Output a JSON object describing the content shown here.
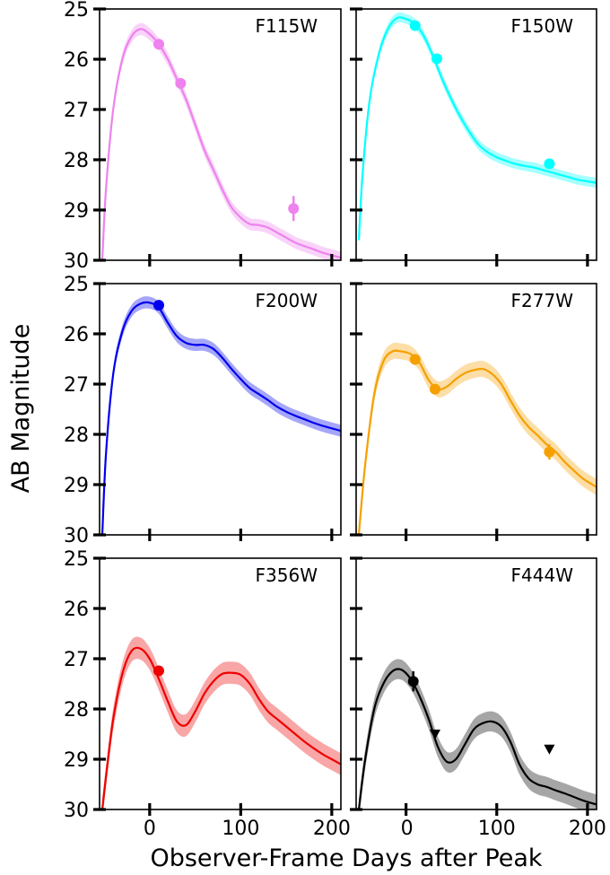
{
  "chart_data": {
    "type": "line",
    "ylabel": "AB Magnitude",
    "xlabel": "Observer-Frame Days after Peak",
    "xlim": [
      -55,
      210
    ],
    "ylim": [
      30,
      25
    ],
    "y_inverted": true,
    "x_ticks": [
      0,
      100,
      200
    ],
    "x_tick_labels": [
      "0",
      "100",
      "200"
    ],
    "y_ticks": [
      25,
      26,
      27,
      28,
      29,
      30
    ],
    "y_tick_labels": [
      "25",
      "26",
      "27",
      "28",
      "29",
      "30"
    ],
    "grid": false,
    "layout": "3 rows x 2 columns, shared axes",
    "panels": [
      {
        "name": "F115W",
        "color": "#ee82ee",
        "model": [
          [
            -52,
            30.0
          ],
          [
            -48,
            28.6
          ],
          [
            -40,
            27.0
          ],
          [
            -30,
            26.0
          ],
          [
            -20,
            25.55
          ],
          [
            -10,
            25.4
          ],
          [
            0,
            25.5
          ],
          [
            10,
            25.7
          ],
          [
            20,
            26.0
          ],
          [
            30,
            26.4
          ],
          [
            40,
            26.8
          ],
          [
            50,
            27.3
          ],
          [
            60,
            27.8
          ],
          [
            70,
            28.2
          ],
          [
            80,
            28.6
          ],
          [
            90,
            28.95
          ],
          [
            100,
            29.15
          ],
          [
            110,
            29.28
          ],
          [
            120,
            29.3
          ],
          [
            130,
            29.35
          ],
          [
            140,
            29.45
          ],
          [
            150,
            29.55
          ],
          [
            160,
            29.65
          ],
          [
            170,
            29.72
          ],
          [
            180,
            29.78
          ],
          [
            190,
            29.85
          ],
          [
            200,
            29.9
          ],
          [
            210,
            29.95
          ]
        ],
        "band_halfwidth": 0.12,
        "points": [
          {
            "x": 10,
            "y": 25.7,
            "yerr": 0.06
          },
          {
            "x": 34,
            "y": 26.48,
            "yerr": 0.08
          },
          {
            "x": 158,
            "y": 28.97,
            "yerr": 0.25
          }
        ],
        "upper_limits": []
      },
      {
        "name": "F150W",
        "color": "#00ffff",
        "model": [
          [
            -52,
            29.6
          ],
          [
            -48,
            28.3
          ],
          [
            -40,
            26.8
          ],
          [
            -30,
            25.9
          ],
          [
            -20,
            25.4
          ],
          [
            -10,
            25.18
          ],
          [
            0,
            25.2
          ],
          [
            10,
            25.3
          ],
          [
            20,
            25.55
          ],
          [
            30,
            25.95
          ],
          [
            40,
            26.4
          ],
          [
            50,
            26.8
          ],
          [
            60,
            27.15
          ],
          [
            70,
            27.45
          ],
          [
            80,
            27.7
          ],
          [
            90,
            27.85
          ],
          [
            100,
            27.95
          ],
          [
            110,
            28.02
          ],
          [
            120,
            28.08
          ],
          [
            130,
            28.12
          ],
          [
            140,
            28.15
          ],
          [
            150,
            28.2
          ],
          [
            160,
            28.25
          ],
          [
            170,
            28.3
          ],
          [
            180,
            28.35
          ],
          [
            190,
            28.4
          ],
          [
            200,
            28.43
          ],
          [
            210,
            28.46
          ]
        ],
        "band_halfwidth": 0.1,
        "points": [
          {
            "x": 10,
            "y": 25.33,
            "yerr": 0.05
          },
          {
            "x": 34,
            "y": 25.99,
            "yerr": 0.06
          },
          {
            "x": 158,
            "y": 28.08,
            "yerr": 0.08
          }
        ],
        "upper_limits": []
      },
      {
        "name": "F200W",
        "color": "#0000ee",
        "model": [
          [
            -52,
            30.0
          ],
          [
            -48,
            28.4
          ],
          [
            -40,
            26.8
          ],
          [
            -30,
            25.95
          ],
          [
            -20,
            25.55
          ],
          [
            -10,
            25.4
          ],
          [
            0,
            25.38
          ],
          [
            10,
            25.48
          ],
          [
            20,
            25.78
          ],
          [
            30,
            26.05
          ],
          [
            40,
            26.18
          ],
          [
            50,
            26.22
          ],
          [
            60,
            26.22
          ],
          [
            70,
            26.3
          ],
          [
            80,
            26.48
          ],
          [
            90,
            26.7
          ],
          [
            100,
            26.9
          ],
          [
            110,
            27.08
          ],
          [
            120,
            27.2
          ],
          [
            130,
            27.32
          ],
          [
            140,
            27.45
          ],
          [
            150,
            27.55
          ],
          [
            160,
            27.63
          ],
          [
            170,
            27.7
          ],
          [
            180,
            27.77
          ],
          [
            190,
            27.83
          ],
          [
            200,
            27.88
          ],
          [
            210,
            27.93
          ]
        ],
        "band_halfwidth": 0.12,
        "points": [
          {
            "x": 10,
            "y": 25.43,
            "yerr": 0.05
          }
        ],
        "upper_limits": []
      },
      {
        "name": "F277W",
        "color": "#f5a000",
        "model": [
          [
            -52,
            30.0
          ],
          [
            -45,
            28.6
          ],
          [
            -35,
            27.2
          ],
          [
            -25,
            26.55
          ],
          [
            -15,
            26.35
          ],
          [
            -5,
            26.35
          ],
          [
            5,
            26.4
          ],
          [
            15,
            26.58
          ],
          [
            25,
            26.92
          ],
          [
            35,
            27.1
          ],
          [
            45,
            27.05
          ],
          [
            55,
            26.9
          ],
          [
            65,
            26.78
          ],
          [
            75,
            26.72
          ],
          [
            85,
            26.7
          ],
          [
            95,
            26.8
          ],
          [
            105,
            27.0
          ],
          [
            115,
            27.32
          ],
          [
            125,
            27.62
          ],
          [
            135,
            27.85
          ],
          [
            145,
            28.02
          ],
          [
            155,
            28.2
          ],
          [
            165,
            28.35
          ],
          [
            175,
            28.55
          ],
          [
            185,
            28.72
          ],
          [
            195,
            28.88
          ],
          [
            210,
            29.05
          ]
        ],
        "band_halfwidth": 0.16,
        "points": [
          {
            "x": 10,
            "y": 26.51,
            "yerr": 0.07
          },
          {
            "x": 32,
            "y": 27.1,
            "yerr": 0.08
          },
          {
            "x": 158,
            "y": 28.35,
            "yerr": 0.15
          }
        ],
        "upper_limits": []
      },
      {
        "name": "F356W",
        "color": "#ee0000",
        "model": [
          [
            -52,
            30.0
          ],
          [
            -47,
            29.2
          ],
          [
            -40,
            28.2
          ],
          [
            -30,
            27.3
          ],
          [
            -20,
            26.85
          ],
          [
            -10,
            26.8
          ],
          [
            0,
            27.0
          ],
          [
            10,
            27.4
          ],
          [
            20,
            27.85
          ],
          [
            30,
            28.25
          ],
          [
            40,
            28.32
          ],
          [
            50,
            28.05
          ],
          [
            60,
            27.7
          ],
          [
            70,
            27.45
          ],
          [
            80,
            27.3
          ],
          [
            90,
            27.28
          ],
          [
            100,
            27.32
          ],
          [
            110,
            27.5
          ],
          [
            120,
            27.8
          ],
          [
            130,
            28.05
          ],
          [
            140,
            28.2
          ],
          [
            150,
            28.35
          ],
          [
            160,
            28.5
          ],
          [
            170,
            28.65
          ],
          [
            180,
            28.78
          ],
          [
            190,
            28.9
          ],
          [
            200,
            29.0
          ],
          [
            210,
            29.1
          ]
        ],
        "band_halfwidth": 0.22,
        "points": [
          {
            "x": 10,
            "y": 27.24,
            "yerr": 0.06
          }
        ],
        "upper_limits": []
      },
      {
        "name": "F444W",
        "color": "#000000",
        "model": [
          [
            -52,
            30.0
          ],
          [
            -45,
            29.0
          ],
          [
            -35,
            28.0
          ],
          [
            -25,
            27.5
          ],
          [
            -15,
            27.25
          ],
          [
            -5,
            27.22
          ],
          [
            5,
            27.4
          ],
          [
            15,
            27.75
          ],
          [
            25,
            28.2
          ],
          [
            35,
            28.75
          ],
          [
            45,
            29.05
          ],
          [
            55,
            29.0
          ],
          [
            65,
            28.7
          ],
          [
            75,
            28.4
          ],
          [
            85,
            28.28
          ],
          [
            95,
            28.25
          ],
          [
            105,
            28.35
          ],
          [
            115,
            28.65
          ],
          [
            125,
            29.1
          ],
          [
            135,
            29.38
          ],
          [
            145,
            29.5
          ],
          [
            155,
            29.55
          ],
          [
            165,
            29.62
          ],
          [
            175,
            29.68
          ],
          [
            185,
            29.75
          ],
          [
            195,
            29.82
          ],
          [
            210,
            29.9
          ]
        ],
        "band_halfwidth": 0.2,
        "points": [
          {
            "x": 8,
            "y": 27.45,
            "yerr": 0.2
          }
        ],
        "upper_limits": [
          {
            "x": 32,
            "y": 28.5
          },
          {
            "x": 158,
            "y": 28.8
          }
        ]
      }
    ]
  }
}
